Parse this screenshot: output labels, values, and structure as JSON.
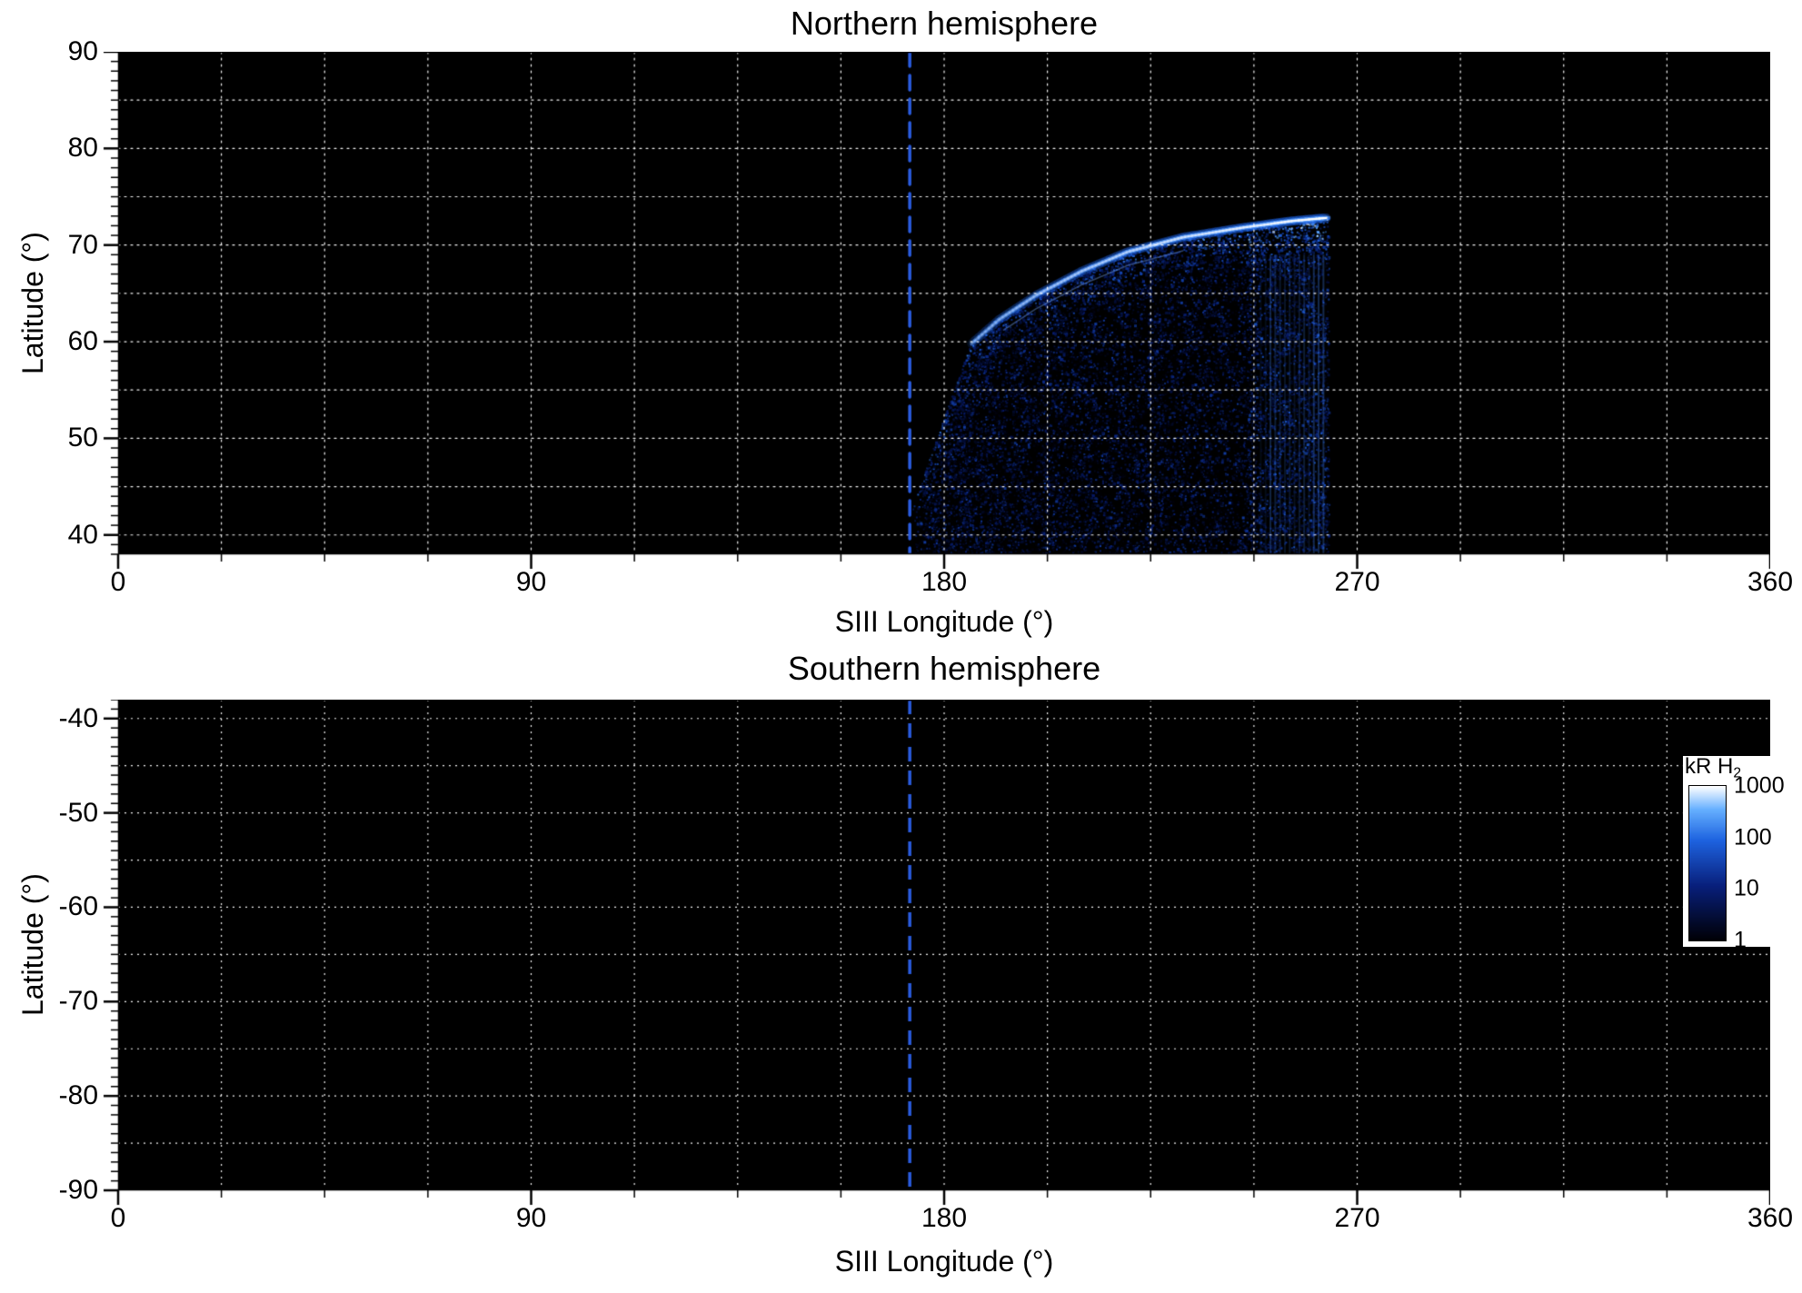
{
  "colors": {
    "background": "#ffffff",
    "panel_bg": "#000000",
    "grid": "#ffffff",
    "dashed_line": "#2a5cdf",
    "text": "#000000",
    "colormap": [
      "#000006",
      "#081f7a",
      "#1e63e0",
      "#66b0ff",
      "#ffffff"
    ]
  },
  "panels": [
    {
      "title": "Northern hemisphere",
      "xlabel": "SIII Longitude (°)",
      "ylabel": "Latitude (°)",
      "x_ticks": [
        "0",
        "90",
        "180",
        "270",
        "360"
      ],
      "y_ticks": [
        "90",
        "80",
        "70",
        "60",
        "50",
        "40"
      ],
      "x_tick_values": [
        0,
        90,
        180,
        270,
        360
      ],
      "y_tick_values": [
        90,
        80,
        70,
        60,
        50,
        40
      ],
      "xlim": [
        0,
        360
      ],
      "ylim": {
        "top": 90,
        "bottom": 38
      },
      "dashed_line_x": 172.5
    },
    {
      "title": "Southern hemisphere",
      "xlabel": "SIII Longitude (°)",
      "ylabel": "Latitude (°)",
      "x_ticks": [
        "0",
        "90",
        "180",
        "270",
        "360"
      ],
      "y_ticks": [
        "-40",
        "-50",
        "-60",
        "-70",
        "-80",
        "-90"
      ],
      "x_tick_values": [
        0,
        90,
        180,
        270,
        360
      ],
      "y_tick_values": [
        -40,
        -50,
        -60,
        -70,
        -80,
        -90
      ],
      "xlim": [
        0,
        360
      ],
      "ylim": {
        "top": -38,
        "bottom": -90
      },
      "dashed_line_x": 172.5
    }
  ],
  "colorbar": {
    "title_main": "kR H",
    "title_sub": "2",
    "tick_labels": [
      "1000",
      "100",
      "10",
      "1"
    ],
    "tick_values": [
      1000,
      100,
      10,
      1
    ],
    "scale": "log"
  },
  "chart_data": [
    {
      "type": "heatmap",
      "title": "Northern hemisphere",
      "xlabel": "SIII Longitude (°)",
      "ylabel": "Latitude (°)",
      "xlim": [
        0,
        360
      ],
      "ylim": [
        38,
        90
      ],
      "x_ticks": [
        0,
        90,
        180,
        270,
        360
      ],
      "y_ticks": [
        90,
        80,
        70,
        60,
        50,
        40
      ],
      "grid": {
        "x_step": 22.5,
        "y_step": 5,
        "style": "dotted",
        "color": "white"
      },
      "reference_line_longitude": 172.5,
      "colorbar": {
        "label": "kR H2",
        "scale": "log",
        "range": [
          1,
          1000
        ]
      },
      "emission": {
        "longitude_range": [
          174,
          263.5
        ],
        "latitude_range": [
          38,
          73
        ],
        "upper_boundary": [
          [
            174,
            44
          ],
          [
            180,
            52
          ],
          [
            186,
            60
          ],
          [
            192,
            62.5
          ],
          [
            200,
            65
          ],
          [
            210,
            67.5
          ],
          [
            220,
            69.5
          ],
          [
            232,
            71
          ],
          [
            245,
            72
          ],
          [
            256,
            72.7
          ],
          [
            263,
            73
          ]
        ],
        "main_arc_longitude_range": [
          186,
          263.5
        ],
        "arc_peak_kR": 1000,
        "diffuse_kR_range": [
          1,
          50
        ],
        "striation_longitude_range": [
          249,
          263
        ]
      }
    },
    {
      "type": "heatmap",
      "title": "Southern hemisphere",
      "xlabel": "SIII Longitude (°)",
      "ylabel": "Latitude (°)",
      "xlim": [
        0,
        360
      ],
      "ylim": [
        -90,
        -38
      ],
      "x_ticks": [
        0,
        90,
        180,
        270,
        360
      ],
      "y_ticks": [
        -40,
        -50,
        -60,
        -70,
        -80,
        -90
      ],
      "grid": {
        "x_step": 22.5,
        "y_step": 5,
        "style": "dotted",
        "color": "white"
      },
      "reference_line_longitude": 172.5,
      "emission": null
    }
  ]
}
